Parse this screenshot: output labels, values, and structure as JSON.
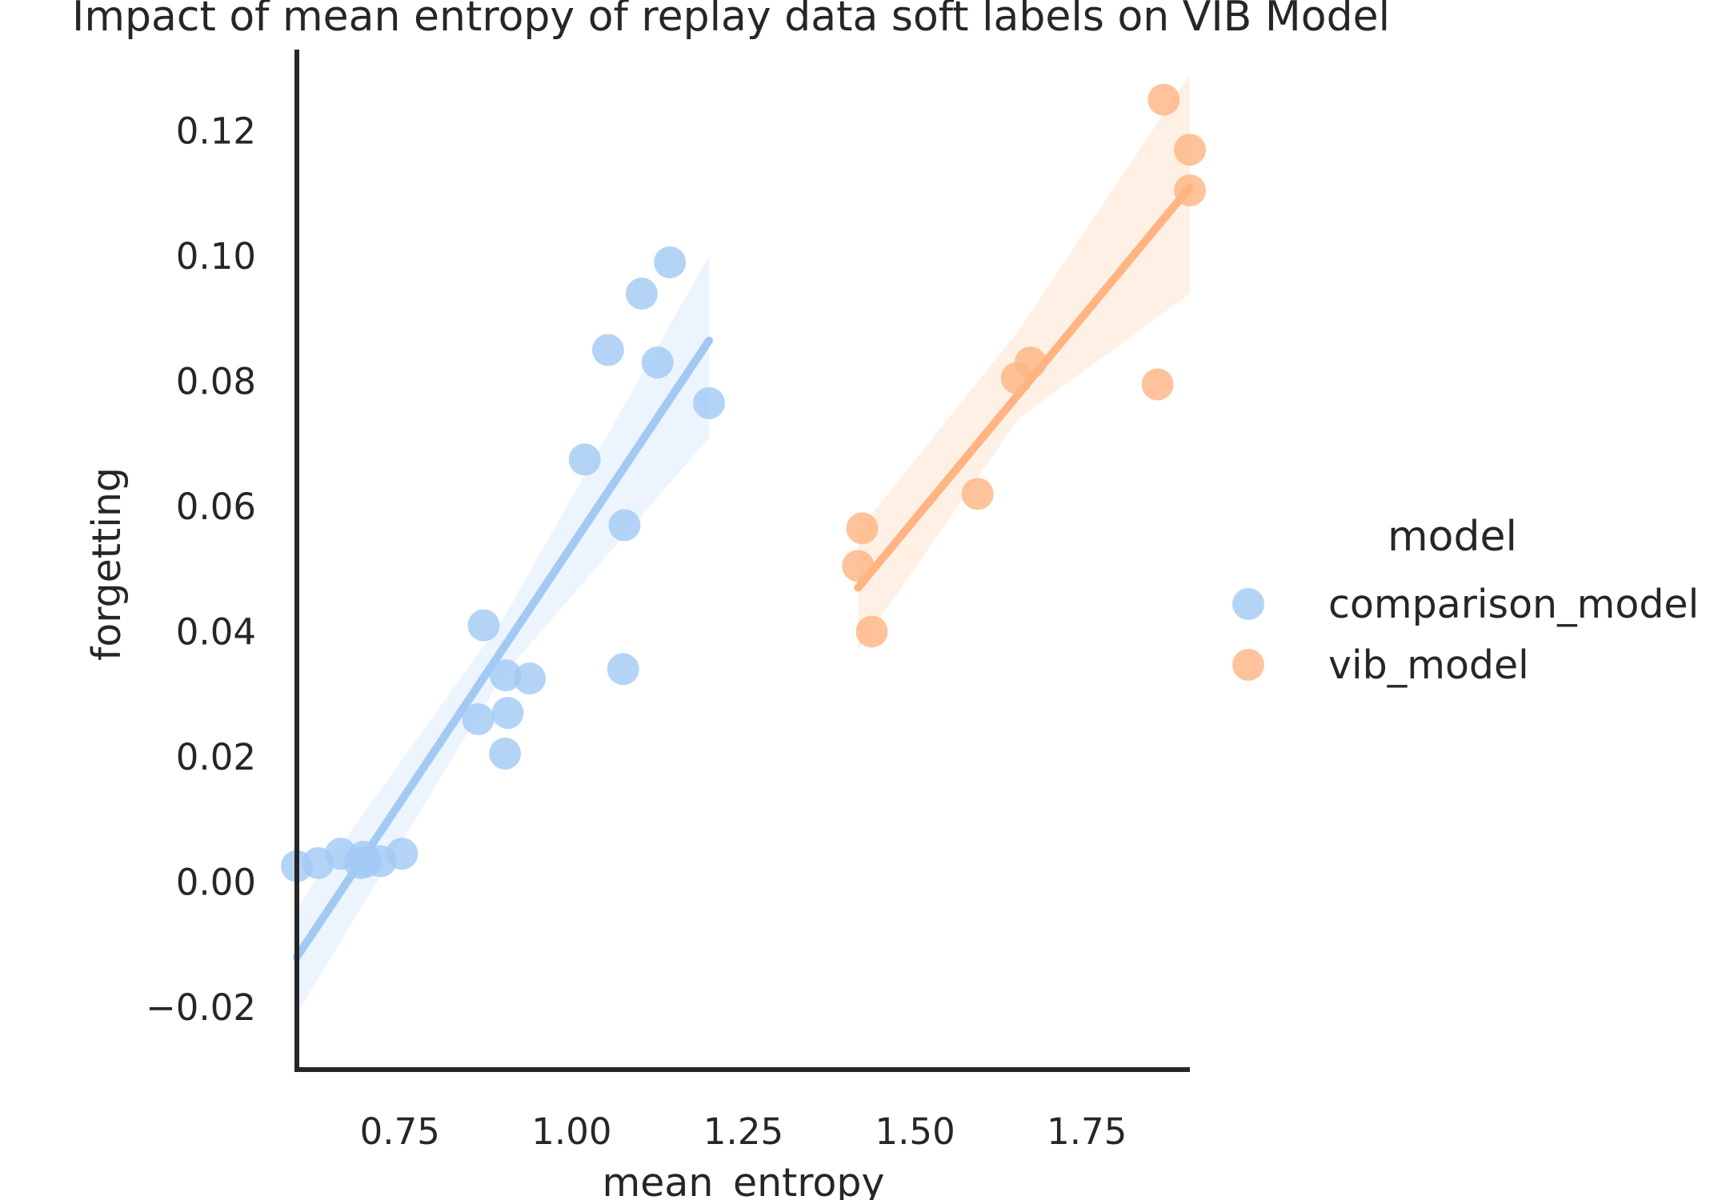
{
  "chart_data": {
    "type": "scatter",
    "title": "Impact of mean entropy of replay data soft labels on VIB Model",
    "xlabel": "mean_entropy",
    "ylabel": "forgetting",
    "xlim": [
      0.6,
      1.9
    ],
    "ylim": [
      -0.03,
      0.133
    ],
    "xticks": [
      0.75,
      1.0,
      1.25,
      1.5,
      1.75
    ],
    "xtick_labels": [
      "0.75",
      "1.00",
      "1.25",
      "1.50",
      "1.75"
    ],
    "yticks": [
      -0.02,
      0.0,
      0.02,
      0.04,
      0.06,
      0.08,
      0.1,
      0.12
    ],
    "ytick_labels": [
      "−0.02",
      "0.00",
      "0.02",
      "0.04",
      "0.06",
      "0.08",
      "0.10",
      "0.12"
    ],
    "grid": false,
    "legend": {
      "title": "model",
      "placement": "right"
    },
    "series": [
      {
        "name": "comparison_model",
        "color": "#a1c9f4",
        "points": [
          [
            0.6,
            0.0025
          ],
          [
            0.631,
            0.003
          ],
          [
            0.664,
            0.0045
          ],
          [
            0.692,
            0.003
          ],
          [
            0.697,
            0.004
          ],
          [
            0.7,
            0.0032
          ],
          [
            0.722,
            0.0033
          ],
          [
            0.753,
            0.0045
          ],
          [
            0.872,
            0.041
          ],
          [
            0.864,
            0.026
          ],
          [
            0.904,
            0.033
          ],
          [
            0.907,
            0.027
          ],
          [
            0.903,
            0.0205
          ],
          [
            0.939,
            0.0325
          ],
          [
            1.019,
            0.0675
          ],
          [
            1.053,
            0.085
          ],
          [
            1.077,
            0.057
          ],
          [
            1.075,
            0.034
          ],
          [
            1.102,
            0.094
          ],
          [
            1.125,
            0.083
          ],
          [
            1.143,
            0.099
          ],
          [
            1.2,
            0.0765
          ]
        ],
        "fit": {
          "x": [
            0.6,
            1.2
          ],
          "y": [
            -0.012,
            0.0865
          ]
        },
        "ci_lower": {
          "x": [
            0.6,
            0.9,
            1.2
          ],
          "y": [
            -0.021,
            0.033,
            0.071
          ]
        },
        "ci_upper": {
          "x": [
            0.6,
            0.9,
            1.2
          ],
          "y": [
            -0.004,
            0.042,
            0.1
          ]
        }
      },
      {
        "name": "vib_model",
        "color": "#ffb482",
        "points": [
          [
            1.417,
            0.0505
          ],
          [
            1.423,
            0.0565
          ],
          [
            1.437,
            0.04
          ],
          [
            1.591,
            0.062
          ],
          [
            1.648,
            0.0805
          ],
          [
            1.668,
            0.083
          ],
          [
            1.853,
            0.0795
          ],
          [
            1.862,
            0.125
          ],
          [
            1.9,
            0.117
          ],
          [
            1.9,
            0.1105
          ]
        ],
        "fit": {
          "x": [
            1.417,
            1.9
          ],
          "y": [
            0.047,
            0.111
          ]
        },
        "ci_lower": {
          "x": [
            1.417,
            1.65,
            1.9
          ],
          "y": [
            0.037,
            0.074,
            0.094
          ]
        },
        "ci_upper": {
          "x": [
            1.417,
            1.65,
            1.9
          ],
          "y": [
            0.056,
            0.088,
            0.129
          ]
        }
      }
    ]
  }
}
